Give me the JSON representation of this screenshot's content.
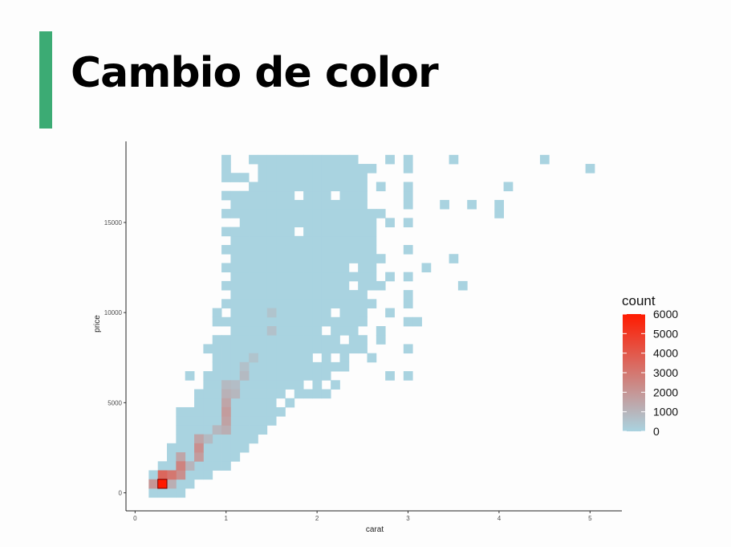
{
  "slide": {
    "title": "Cambio de color",
    "accent_color": "#3cab74"
  },
  "chart_data": {
    "type": "heatmap",
    "title": "",
    "xlabel": "carat",
    "ylabel": "price",
    "xlim": [
      -0.1,
      5.35
    ],
    "ylim": [
      -1000,
      19500
    ],
    "x_ticks": [
      0,
      1,
      2,
      3,
      4,
      5
    ],
    "y_ticks": [
      0,
      5000,
      10000,
      15000
    ],
    "x_tick_labels": [
      "0",
      "1",
      "2",
      "3",
      "4",
      "5"
    ],
    "y_tick_labels": [
      "0",
      "5000",
      "10000",
      "15000"
    ],
    "bin_width": {
      "carat": 0.1,
      "price": 500
    },
    "grid": false,
    "fill_scale": {
      "low": "#a9d3e0",
      "high": "#ff1a00",
      "min": 0,
      "max": 6000
    },
    "legend": {
      "title": "count",
      "position": "right",
      "breaks": [
        0,
        1000,
        2000,
        3000,
        4000,
        5000,
        6000
      ],
      "labels": [
        "0",
        "1000",
        "2000",
        "3000",
        "4000",
        "5000",
        "6000"
      ]
    },
    "column_ranges": [
      {
        "x": 0.2,
        "y_min": 0,
        "y_max": 1000
      },
      {
        "x": 0.3,
        "y_min": 0,
        "y_max": 1500
      },
      {
        "x": 0.4,
        "y_min": 0,
        "y_max": 2000
      },
      {
        "x": 0.5,
        "y_min": 0,
        "y_max": 4500
      },
      {
        "x": 0.6,
        "y_min": 500,
        "y_max": 4500
      },
      {
        "x": 0.7,
        "y_min": 1000,
        "y_max": 5500
      },
      {
        "x": 0.8,
        "y_min": 1000,
        "y_max": 6500
      },
      {
        "x": 0.9,
        "y_min": 1500,
        "y_max": 8000
      },
      {
        "x": 1.0,
        "y_min": 2000,
        "y_max": 18500
      },
      {
        "x": 1.1,
        "y_min": 2000,
        "y_max": 17500
      },
      {
        "x": 1.2,
        "y_min": 2500,
        "y_max": 17500
      },
      {
        "x": 1.3,
        "y_min": 3000,
        "y_max": 18500
      },
      {
        "x": 1.4,
        "y_min": 3500,
        "y_max": 18500
      },
      {
        "x": 1.5,
        "y_min": 4000,
        "y_max": 18500
      },
      {
        "x": 1.6,
        "y_min": 4500,
        "y_max": 18500
      },
      {
        "x": 1.7,
        "y_min": 5000,
        "y_max": 18500
      },
      {
        "x": 1.8,
        "y_min": 5500,
        "y_max": 18500
      },
      {
        "x": 1.9,
        "y_min": 5500,
        "y_max": 18500
      },
      {
        "x": 2.0,
        "y_min": 6000,
        "y_max": 18500
      },
      {
        "x": 2.1,
        "y_min": 6500,
        "y_max": 18500
      },
      {
        "x": 2.2,
        "y_min": 7000,
        "y_max": 18500
      },
      {
        "x": 2.3,
        "y_min": 7500,
        "y_max": 18500
      },
      {
        "x": 2.4,
        "y_min": 8000,
        "y_max": 18500
      },
      {
        "x": 2.5,
        "y_min": 10000,
        "y_max": 18000
      },
      {
        "x": 2.6,
        "y_min": 11500,
        "y_max": 15500
      }
    ],
    "missing_cells": [
      {
        "x": 1.0,
        "y": 17000
      },
      {
        "x": 1.1,
        "y": 17000
      },
      {
        "x": 1.2,
        "y": 17000
      },
      {
        "x": 1.0,
        "y": 16000
      },
      {
        "x": 1.0,
        "y": 15000
      },
      {
        "x": 1.0,
        "y": 14000
      },
      {
        "x": 1.0,
        "y": 13000
      },
      {
        "x": 1.0,
        "y": 12000
      },
      {
        "x": 1.0,
        "y": 11000
      },
      {
        "x": 1.0,
        "y": 10000
      },
      {
        "x": 1.0,
        "y": 9000
      },
      {
        "x": 1.1,
        "y": 15000
      },
      {
        "x": 1.3,
        "y": 18000
      },
      {
        "x": 1.3,
        "y": 17500
      },
      {
        "x": 1.8,
        "y": 16500
      },
      {
        "x": 1.8,
        "y": 14500
      },
      {
        "x": 2.2,
        "y": 16500
      },
      {
        "x": 2.4,
        "y": 12500
      },
      {
        "x": 2.4,
        "y": 11500
      },
      {
        "x": 2.2,
        "y": 10000
      },
      {
        "x": 2.1,
        "y": 9000
      },
      {
        "x": 2.3,
        "y": 8500
      },
      {
        "x": 2.0,
        "y": 7500
      },
      {
        "x": 1.9,
        "y": 6000
      },
      {
        "x": 1.7,
        "y": 5500
      },
      {
        "x": 1.6,
        "y": 5000
      },
      {
        "x": 2.2,
        "y": 7500
      }
    ],
    "extra_cells": [
      {
        "x": 0.9,
        "y": 10000
      },
      {
        "x": 0.9,
        "y": 9500
      },
      {
        "x": 0.9,
        "y": 8500
      },
      {
        "x": 0.8,
        "y": 8000
      },
      {
        "x": 0.6,
        "y": 6500
      },
      {
        "x": 0.4,
        "y": 2500
      },
      {
        "x": 0.8,
        "y": 1000
      },
      {
        "x": 0.9,
        "y": 1500
      },
      {
        "x": 1.0,
        "y": 1500
      },
      {
        "x": 2.0,
        "y": 5500
      },
      {
        "x": 2.1,
        "y": 5500
      },
      {
        "x": 2.2,
        "y": 6000
      },
      {
        "x": 2.3,
        "y": 7000
      },
      {
        "x": 2.5,
        "y": 8000
      },
      {
        "x": 2.5,
        "y": 8500
      },
      {
        "x": 2.6,
        "y": 7500
      },
      {
        "x": 2.7,
        "y": 8500
      },
      {
        "x": 2.8,
        "y": 6500
      },
      {
        "x": 3.0,
        "y": 6500
      },
      {
        "x": 2.5,
        "y": 9500
      },
      {
        "x": 2.6,
        "y": 10500
      },
      {
        "x": 2.7,
        "y": 11500
      },
      {
        "x": 2.8,
        "y": 10000
      },
      {
        "x": 2.7,
        "y": 9000
      },
      {
        "x": 3.0,
        "y": 8000
      },
      {
        "x": 3.0,
        "y": 9500
      },
      {
        "x": 3.0,
        "y": 11000
      },
      {
        "x": 3.0,
        "y": 10500
      },
      {
        "x": 3.1,
        "y": 9500
      },
      {
        "x": 3.0,
        "y": 12000
      },
      {
        "x": 3.2,
        "y": 12500
      },
      {
        "x": 3.5,
        "y": 13000
      },
      {
        "x": 3.6,
        "y": 11500
      },
      {
        "x": 3.0,
        "y": 13500
      },
      {
        "x": 2.7,
        "y": 13000
      },
      {
        "x": 2.8,
        "y": 12000
      },
      {
        "x": 2.7,
        "y": 15500
      },
      {
        "x": 2.8,
        "y": 15000
      },
      {
        "x": 3.0,
        "y": 15000
      },
      {
        "x": 3.0,
        "y": 16000
      },
      {
        "x": 3.0,
        "y": 16500
      },
      {
        "x": 3.0,
        "y": 17000
      },
      {
        "x": 3.4,
        "y": 16000
      },
      {
        "x": 3.7,
        "y": 16000
      },
      {
        "x": 4.0,
        "y": 16000
      },
      {
        "x": 4.0,
        "y": 15500
      },
      {
        "x": 4.1,
        "y": 17000
      },
      {
        "x": 2.7,
        "y": 17000
      },
      {
        "x": 2.8,
        "y": 18500
      },
      {
        "x": 3.0,
        "y": 18500
      },
      {
        "x": 3.0,
        "y": 18000
      },
      {
        "x": 3.5,
        "y": 18500
      },
      {
        "x": 4.5,
        "y": 18500
      },
      {
        "x": 5.0,
        "y": 18000
      },
      {
        "x": 2.6,
        "y": 18000
      }
    ],
    "hot_cells": [
      {
        "x": 0.2,
        "y": 500,
        "count": 2000
      },
      {
        "x": 0.3,
        "y": 500,
        "count": 6000
      },
      {
        "x": 0.3,
        "y": 1000,
        "count": 3500
      },
      {
        "x": 0.4,
        "y": 1000,
        "count": 3000
      },
      {
        "x": 0.4,
        "y": 500,
        "count": 1200
      },
      {
        "x": 0.5,
        "y": 1500,
        "count": 2600
      },
      {
        "x": 0.5,
        "y": 1000,
        "count": 2200
      },
      {
        "x": 0.5,
        "y": 2000,
        "count": 1500
      },
      {
        "x": 0.6,
        "y": 1500,
        "count": 1000
      },
      {
        "x": 0.7,
        "y": 2500,
        "count": 2200
      },
      {
        "x": 0.7,
        "y": 2000,
        "count": 1800
      },
      {
        "x": 0.7,
        "y": 3000,
        "count": 1500
      },
      {
        "x": 0.8,
        "y": 3000,
        "count": 800
      },
      {
        "x": 0.9,
        "y": 3500,
        "count": 900
      },
      {
        "x": 1.0,
        "y": 4500,
        "count": 1800
      },
      {
        "x": 1.0,
        "y": 4000,
        "count": 1600
      },
      {
        "x": 1.0,
        "y": 5000,
        "count": 1500
      },
      {
        "x": 1.0,
        "y": 3500,
        "count": 1200
      },
      {
        "x": 1.0,
        "y": 5500,
        "count": 1100
      },
      {
        "x": 1.0,
        "y": 6000,
        "count": 800
      },
      {
        "x": 1.1,
        "y": 5500,
        "count": 900
      },
      {
        "x": 1.1,
        "y": 6000,
        "count": 700
      },
      {
        "x": 1.2,
        "y": 6500,
        "count": 800
      },
      {
        "x": 1.2,
        "y": 7000,
        "count": 600
      },
      {
        "x": 1.3,
        "y": 7500,
        "count": 500
      },
      {
        "x": 1.5,
        "y": 9000,
        "count": 600
      },
      {
        "x": 1.5,
        "y": 10000,
        "count": 500
      }
    ]
  }
}
